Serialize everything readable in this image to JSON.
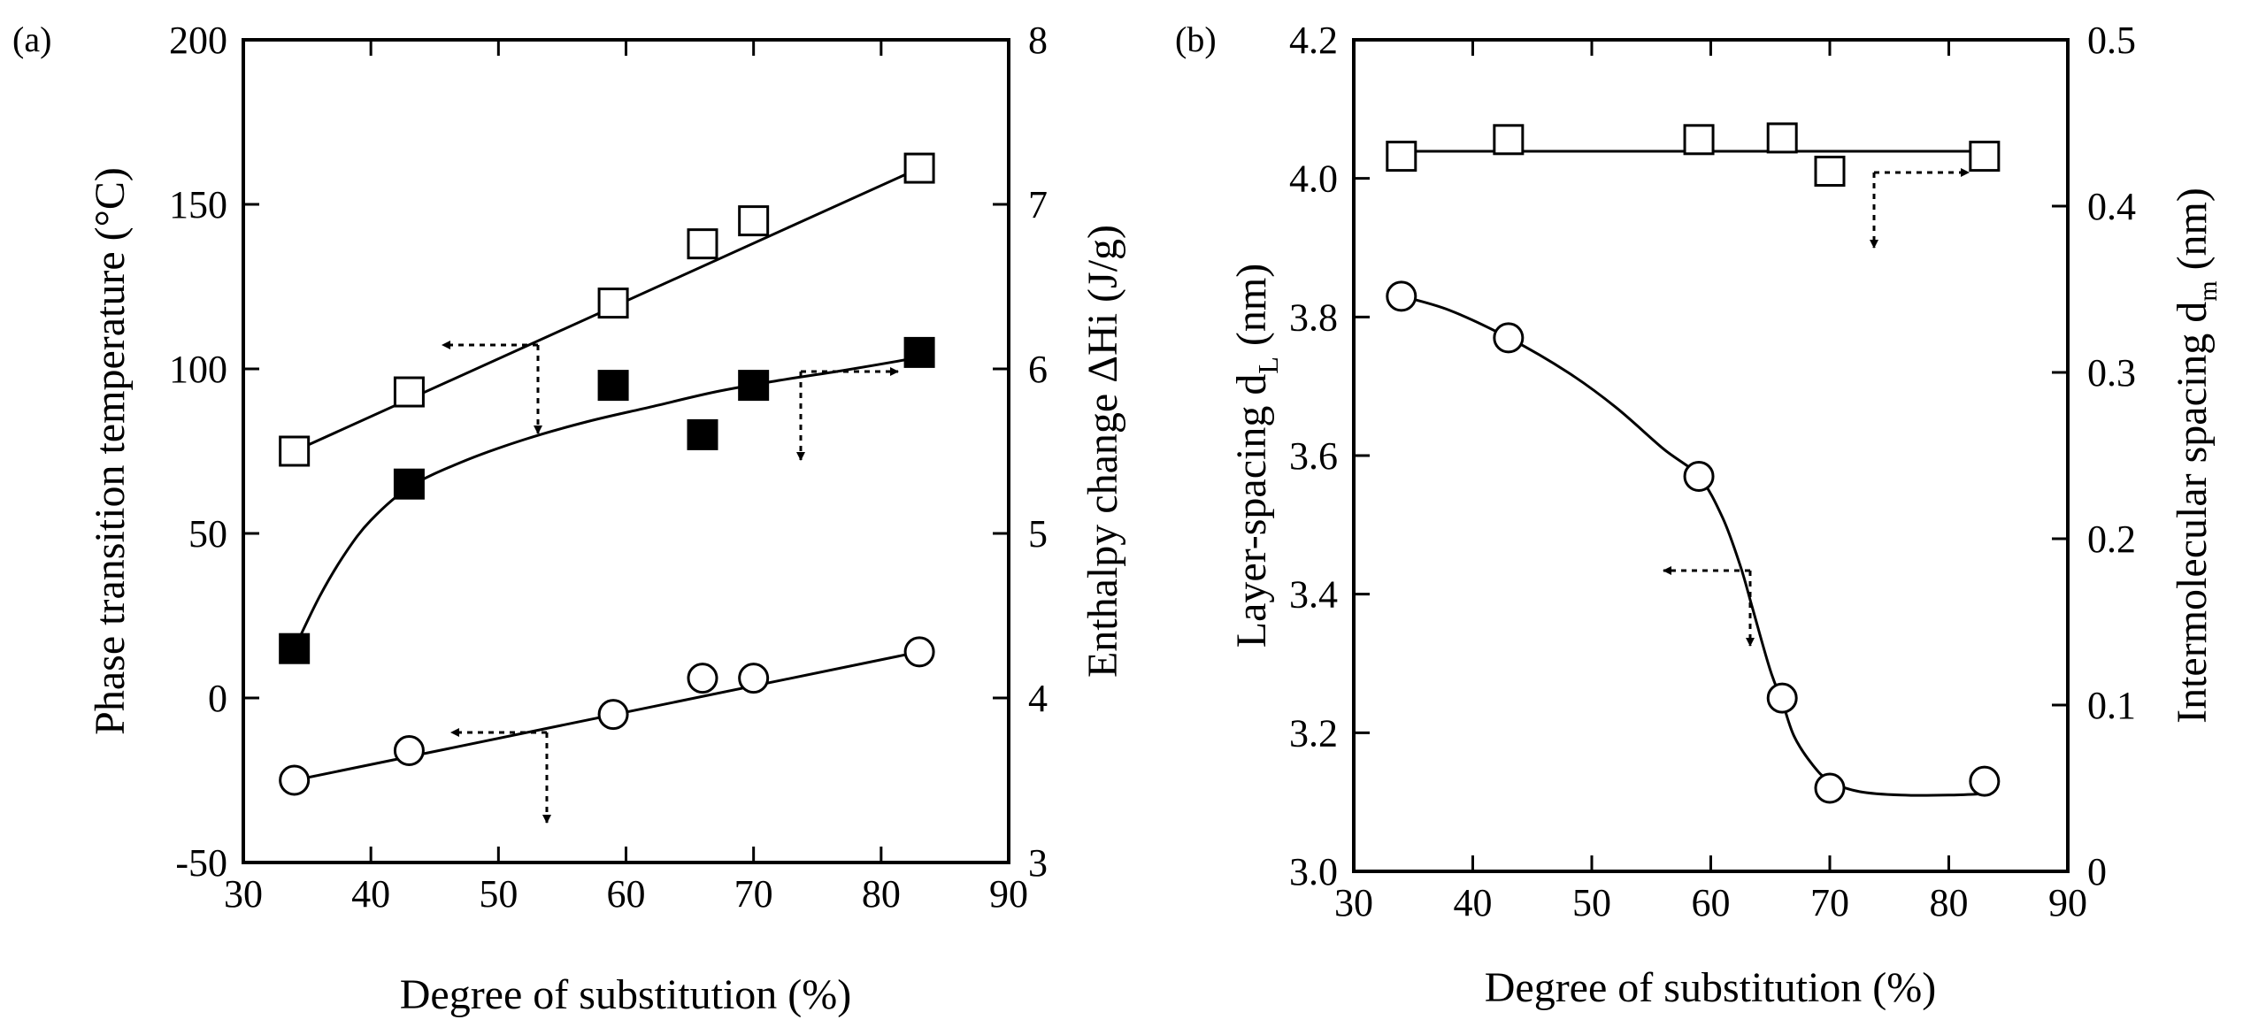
{
  "chart_data": [
    {
      "panel": "(a)",
      "type": "scatter",
      "xlabel": "Degree of substitution (%)",
      "ylabel": "Phase transition temperature (°C)",
      "y2label": "Enthalpy change ΔHi  (J/g)",
      "xlim": [
        30,
        90
      ],
      "ylim": [
        -50,
        200
      ],
      "y2lim": [
        3,
        8
      ],
      "x_ticks": [
        "30",
        "40",
        "50",
        "60",
        "70",
        "80",
        "90"
      ],
      "y_ticks": [
        "-50",
        "0",
        "50",
        "100",
        "150",
        "200"
      ],
      "y2_ticks": [
        "3",
        "4",
        "5",
        "6",
        "7",
        "8"
      ],
      "series": [
        {
          "name": "open-squares",
          "marker": "open-square",
          "axis": "left",
          "x": [
            34,
            43,
            59,
            66,
            70,
            83
          ],
          "values": [
            75,
            93,
            120,
            138,
            145,
            161
          ],
          "fit": [
            [
              34,
              75
            ],
            [
              83,
              161
            ]
          ]
        },
        {
          "name": "filled-squares",
          "marker": "filled-square",
          "axis": "right",
          "x": [
            34,
            43,
            59,
            66,
            70,
            83
          ],
          "values": [
            4.3,
            5.3,
            5.9,
            5.6,
            5.9,
            6.1
          ],
          "fit": [
            [
              34,
              4.3
            ],
            [
              36,
              4.62
            ],
            [
              38,
              4.88
            ],
            [
              40,
              5.08
            ],
            [
              43,
              5.28
            ],
            [
              47,
              5.43
            ],
            [
              52,
              5.57
            ],
            [
              57,
              5.68
            ],
            [
              62,
              5.77
            ],
            [
              67,
              5.86
            ],
            [
              72,
              5.93
            ],
            [
              77,
              5.99
            ],
            [
              83,
              6.07
            ]
          ]
        },
        {
          "name": "open-circles",
          "marker": "open-circle",
          "axis": "left",
          "x": [
            34,
            43,
            59,
            66,
            70,
            83
          ],
          "values": [
            -25,
            -16,
            -5,
            6,
            6,
            14
          ],
          "fit": [
            [
              34,
              -25
            ],
            [
              83,
              14
            ]
          ]
        }
      ]
    },
    {
      "panel": "(b)",
      "type": "scatter",
      "xlabel": "Degree of substitution (%)",
      "ylabel": "Layer-spacing  d",
      "ylabel_sub": "L",
      "ylabel_unit": "(nm)",
      "y2label": "Intermolecular spacing  d",
      "y2label_sub": "m",
      "y2label_unit": "(nm)",
      "xlim": [
        30,
        90
      ],
      "ylim": [
        3.0,
        4.2
      ],
      "y2lim": [
        0,
        0.5
      ],
      "x_ticks": [
        "30",
        "40",
        "50",
        "60",
        "70",
        "80",
        "90"
      ],
      "y_ticks": [
        "3.0",
        "3.2",
        "3.4",
        "3.6",
        "3.8",
        "4.0",
        "4.2"
      ],
      "y2_ticks": [
        "0",
        "0.1",
        "0.2",
        "0.3",
        "0.4",
        "0.5"
      ],
      "series": [
        {
          "name": "open-squares",
          "marker": "open-square",
          "axis": "right",
          "x": [
            34,
            43,
            59,
            66,
            70,
            83
          ],
          "values": [
            0.43,
            0.44,
            0.44,
            0.441,
            0.421,
            0.43
          ],
          "fit": [
            [
              34,
              0.433
            ],
            [
              83,
              0.433
            ]
          ]
        },
        {
          "name": "open-circles",
          "marker": "open-circle",
          "axis": "left",
          "x": [
            34,
            43,
            59,
            66,
            70,
            83
          ],
          "values": [
            3.83,
            3.77,
            3.57,
            3.25,
            3.12,
            3.13
          ],
          "fit": [
            [
              34,
              3.83
            ],
            [
              38,
              3.81
            ],
            [
              43,
              3.77
            ],
            [
              48,
              3.72
            ],
            [
              52,
              3.67
            ],
            [
              56,
              3.61
            ],
            [
              59,
              3.57
            ],
            [
              61,
              3.51
            ],
            [
              62.5,
              3.44
            ],
            [
              63.5,
              3.38
            ],
            [
              65,
              3.29
            ],
            [
              66,
              3.245
            ],
            [
              67,
              3.195
            ],
            [
              68.5,
              3.155
            ],
            [
              70,
              3.13
            ],
            [
              72.5,
              3.115
            ],
            [
              76,
              3.11
            ],
            [
              80,
              3.11
            ],
            [
              83,
              3.112
            ]
          ]
        }
      ]
    }
  ]
}
